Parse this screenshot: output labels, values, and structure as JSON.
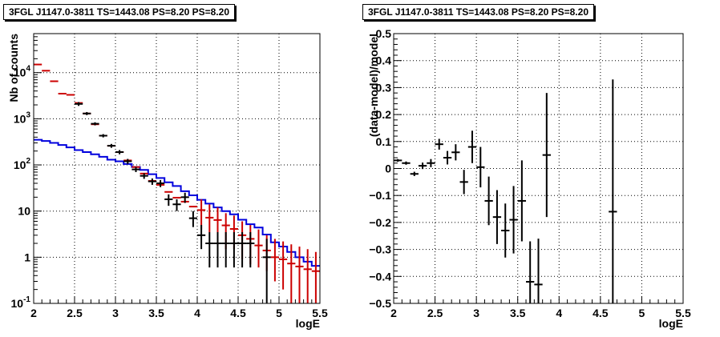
{
  "chart_data": [
    {
      "type": "line",
      "title": "3FGL J1147.0-3811 TS=1443.08 PS=8.20 PS=8.20",
      "xlabel": "logE",
      "ylabel": "Nb of counts",
      "xlim": [
        2,
        5.5
      ],
      "ylim": [
        0.1,
        70000
      ],
      "yscale": "log",
      "grid": true,
      "x_ticks": [
        "2",
        "2.5",
        "3",
        "3.5",
        "4",
        "4.5",
        "5",
        "5.5"
      ],
      "y_ticks": [
        "10^-1",
        "1",
        "10",
        "10^2",
        "10^3",
        "10^4"
      ],
      "bin_edges": [
        2.0,
        2.1,
        2.2,
        2.3,
        2.4,
        2.5,
        2.6,
        2.7,
        2.8,
        2.9,
        3.0,
        3.1,
        3.2,
        3.3,
        3.4,
        3.5,
        3.6,
        3.7,
        3.8,
        3.9,
        4.0,
        4.1,
        4.2,
        4.3,
        4.4,
        4.5,
        4.6,
        4.7,
        4.8,
        4.9,
        5.0,
        5.1,
        5.2,
        5.3,
        5.4,
        5.5
      ],
      "series": [
        {
          "role": "data",
          "color": "#000000",
          "x": [
            2.55,
            2.65,
            2.75,
            2.85,
            2.95,
            3.05,
            3.15,
            3.25,
            3.35,
            3.45,
            3.55,
            3.65,
            3.75,
            3.85,
            3.95,
            4.05,
            4.15,
            4.25,
            4.35,
            4.45,
            4.55,
            4.65,
            4.85
          ],
          "y": [
            2100,
            1300,
            780,
            430,
            260,
            190,
            120,
            80,
            58,
            44,
            40,
            18,
            14,
            20,
            7,
            3,
            2,
            2,
            2,
            2,
            2,
            2,
            1
          ],
          "y_low": [
            1900,
            1200,
            720,
            395,
            235,
            170,
            105,
            70,
            50,
            37,
            33,
            13,
            10,
            15,
            4.5,
            1.5,
            0.6,
            0.6,
            0.6,
            0.6,
            0.6,
            0.6,
            0.1
          ],
          "y_high": [
            2300,
            1400,
            840,
            465,
            285,
            210,
            135,
            90,
            66,
            51,
            47,
            23,
            18,
            25,
            10,
            5,
            3.5,
            3.5,
            3.5,
            3.5,
            3.5,
            3.5,
            2.5
          ]
        },
        {
          "role": "model",
          "color": "#cc0000",
          "x": [
            2.05,
            2.15,
            2.25,
            2.35,
            2.45,
            2.55,
            2.65,
            2.75,
            2.85,
            2.95,
            3.05,
            3.15,
            3.25,
            3.35,
            3.45,
            3.55,
            3.65,
            3.75,
            3.85,
            3.95,
            4.05,
            4.15,
            4.25,
            4.35,
            4.45,
            4.55,
            4.65,
            4.75,
            4.85,
            4.95,
            5.05,
            5.15,
            5.25,
            5.35,
            5.45
          ],
          "y": [
            15000,
            11000,
            6500,
            3500,
            3300,
            2200,
            1300,
            760,
            430,
            260,
            190,
            125,
            90,
            65,
            45,
            37,
            26,
            19.5,
            16,
            12.5,
            10.5,
            7.2,
            6.4,
            4.9,
            4.1,
            3.0,
            2.5,
            1.8,
            1.4,
            1.0,
            0.9,
            0.73,
            0.63,
            0.55,
            0.5
          ],
          "y_low": [
            null,
            null,
            null,
            null,
            null,
            null,
            null,
            null,
            null,
            null,
            null,
            null,
            null,
            null,
            null,
            null,
            null,
            null,
            null,
            null,
            4,
            3.5,
            2.5,
            1.5,
            1.5,
            0.9,
            0.7,
            0.6,
            0.5,
            0.3,
            0.2,
            0.1,
            0.1,
            0.1,
            0.1
          ],
          "y_high": [
            null,
            null,
            null,
            null,
            null,
            null,
            null,
            null,
            null,
            null,
            null,
            null,
            null,
            null,
            null,
            null,
            null,
            null,
            null,
            null,
            18,
            14,
            12,
            9,
            8,
            6,
            5,
            4,
            3,
            2.5,
            2.2,
            1.9,
            1.7,
            1.5,
            1.3
          ]
        },
        {
          "role": "background",
          "color": "#0000dd",
          "values": [
            350,
            330,
            300,
            270,
            240,
            210,
            190,
            170,
            150,
            130,
            120,
            105,
            90,
            78,
            63,
            52,
            42,
            35,
            27,
            22,
            17.5,
            14.5,
            12,
            10,
            8.5,
            6.5,
            5.2,
            4.4,
            3.1,
            2.1,
            1.7,
            1.3,
            1.0,
            0.8,
            0.65
          ]
        }
      ]
    },
    {
      "type": "scatter",
      "title": "3FGL J1147.0-3811 TS=1443.08 PS=8.20 PS=8.20",
      "xlabel": "logE",
      "ylabel": "(data-model)/model",
      "xlim": [
        2,
        5.5
      ],
      "ylim": [
        -0.5,
        0.5
      ],
      "grid": true,
      "x_ticks": [
        "2",
        "2.5",
        "3",
        "3.5",
        "4",
        "4.5",
        "5",
        "5.5"
      ],
      "y_ticks": [
        "−0.5",
        "−0.4",
        "−0.3",
        "−0.2",
        "−0.1",
        "0",
        "0.1",
        "0.2",
        "0.3",
        "0.4",
        "0.5"
      ],
      "points": [
        {
          "x": 2.05,
          "y": 0.03,
          "err": 0.005
        },
        {
          "x": 2.15,
          "y": 0.02,
          "err": 0.006
        },
        {
          "x": 2.25,
          "y": -0.02,
          "err": 0.008
        },
        {
          "x": 2.35,
          "y": 0.01,
          "err": 0.012
        },
        {
          "x": 2.45,
          "y": 0.02,
          "err": 0.015
        },
        {
          "x": 2.55,
          "y": 0.09,
          "err": 0.02
        },
        {
          "x": 2.65,
          "y": 0.04,
          "err": 0.025
        },
        {
          "x": 2.75,
          "y": 0.06,
          "err": 0.03
        },
        {
          "x": 2.85,
          "y": -0.05,
          "err": 0.045
        },
        {
          "x": 2.95,
          "y": 0.08,
          "err": 0.06
        },
        {
          "x": 3.05,
          "y": 0.005,
          "err": 0.075
        },
        {
          "x": 3.15,
          "y": -0.12,
          "err": 0.09
        },
        {
          "x": 3.25,
          "y": -0.18,
          "err": 0.1
        },
        {
          "x": 3.35,
          "y": -0.23,
          "err": 0.1
        },
        {
          "x": 3.45,
          "y": -0.19,
          "err": 0.125
        },
        {
          "x": 3.55,
          "y": -0.12,
          "err": 0.15
        },
        {
          "x": 3.65,
          "y": -0.42,
          "err": 0.15
        },
        {
          "x": 3.75,
          "y": -0.43,
          "err": 0.17
        },
        {
          "x": 3.85,
          "y": 0.05,
          "err": 0.23
        },
        {
          "x": 4.65,
          "y": -0.16,
          "err": 0.49
        }
      ]
    }
  ]
}
